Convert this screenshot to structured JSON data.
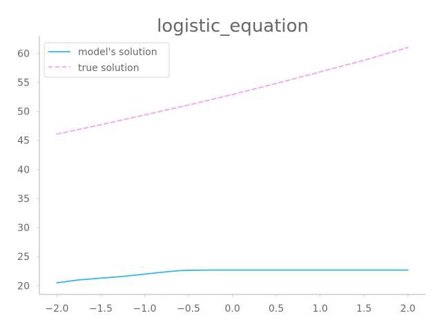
{
  "chart_data": {
    "type": "line",
    "title": "logistic_equation",
    "xlabel": "",
    "ylabel": "",
    "xlim": [
      -2.2,
      2.2
    ],
    "ylim": [
      18.5,
      63
    ],
    "xticks": [
      -2.0,
      -1.5,
      -1.0,
      -0.5,
      0.0,
      0.5,
      1.0,
      1.5,
      2.0
    ],
    "xtick_labels": [
      "−2.0",
      "−1.5",
      "−1.0",
      "−0.5",
      "0.0",
      "0.5",
      "1.0",
      "1.5",
      "2.0"
    ],
    "yticks": [
      20,
      25,
      30,
      35,
      40,
      45,
      50,
      55,
      60
    ],
    "ytick_labels": [
      "20",
      "25",
      "30",
      "35",
      "40",
      "45",
      "50",
      "55",
      "60"
    ],
    "grid": false,
    "legend": {
      "placement": "top-left",
      "entries": [
        "model's solution",
        "true solution"
      ]
    },
    "series": [
      {
        "name": "model's solution",
        "color": "#29b6f6",
        "style": "solid",
        "x": [
          -2.0,
          -1.75,
          -1.5,
          -1.25,
          -1.0,
          -0.75,
          -0.6,
          -0.5,
          -0.25,
          0.0,
          0.5,
          1.0,
          1.5,
          2.0
        ],
        "y": [
          20.5,
          21.0,
          21.3,
          21.6,
          22.0,
          22.4,
          22.6,
          22.65,
          22.7,
          22.7,
          22.7,
          22.7,
          22.7,
          22.7
        ]
      },
      {
        "name": "true solution",
        "color": "#f4a0f0",
        "style": "dashed",
        "x": [
          -2.0,
          -1.5,
          -1.0,
          -0.5,
          0.0,
          0.5,
          1.0,
          1.5,
          2.0
        ],
        "y": [
          46.1,
          47.7,
          49.4,
          51.1,
          52.9,
          54.8,
          56.8,
          58.8,
          61.0
        ]
      }
    ]
  }
}
